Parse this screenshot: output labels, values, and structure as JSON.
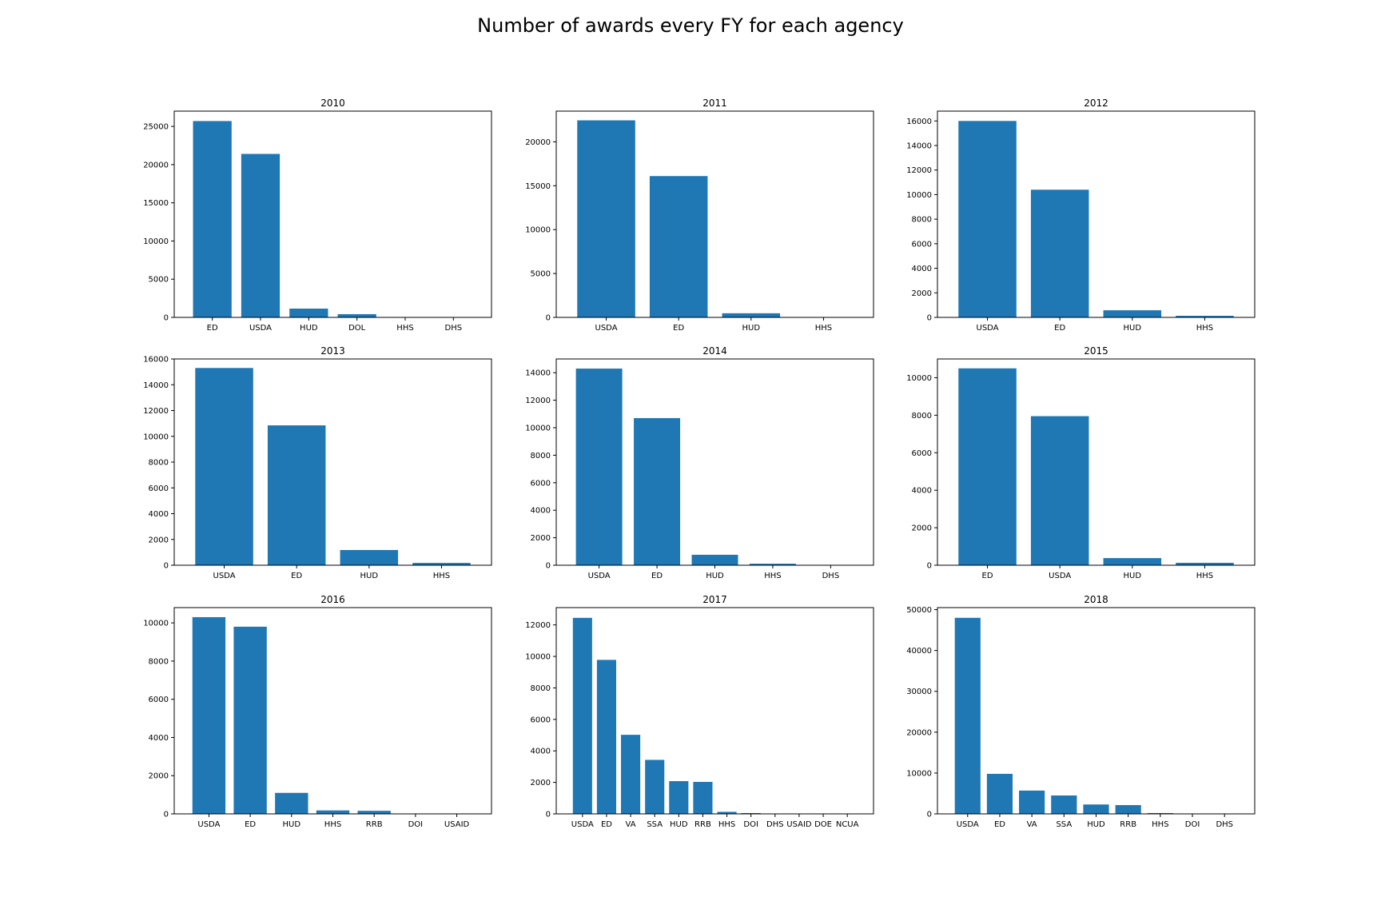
{
  "page": {
    "title": "Number of awards every FY for each agency"
  },
  "bar_color": "#1f77b4",
  "chart_data": [
    {
      "type": "bar",
      "title": "2010",
      "categories": [
        "ED",
        "USDA",
        "HUD",
        "DOL",
        "HHS",
        "DHS"
      ],
      "values": [
        25700,
        21400,
        1150,
        420,
        30,
        10
      ],
      "ylim": [
        0,
        27000
      ],
      "yticks": [
        0,
        5000,
        10000,
        15000,
        20000,
        25000
      ],
      "bar_width": 0.8
    },
    {
      "type": "bar",
      "title": "2011",
      "categories": [
        "USDA",
        "ED",
        "HUD",
        "HHS"
      ],
      "values": [
        22450,
        16100,
        470,
        20
      ],
      "ylim": [
        0,
        23500
      ],
      "yticks": [
        0,
        5000,
        10000,
        15000,
        20000
      ],
      "bar_width": 0.8
    },
    {
      "type": "bar",
      "title": "2012",
      "categories": [
        "USDA",
        "ED",
        "HUD",
        "HHS"
      ],
      "values": [
        16000,
        10400,
        580,
        130
      ],
      "ylim": [
        0,
        16800
      ],
      "yticks": [
        0,
        2000,
        4000,
        6000,
        8000,
        10000,
        12000,
        14000,
        16000
      ],
      "bar_width": 0.8
    },
    {
      "type": "bar",
      "title": "2013",
      "categories": [
        "USDA",
        "ED",
        "HUD",
        "HHS"
      ],
      "values": [
        15300,
        10850,
        1180,
        180
      ],
      "ylim": [
        0,
        16000
      ],
      "yticks": [
        0,
        2000,
        4000,
        6000,
        8000,
        10000,
        12000,
        14000,
        16000
      ],
      "bar_width": 0.8
    },
    {
      "type": "bar",
      "title": "2014",
      "categories": [
        "USDA",
        "ED",
        "HUD",
        "HHS",
        "DHS"
      ],
      "values": [
        14300,
        10700,
        760,
        110,
        10
      ],
      "ylim": [
        0,
        15000
      ],
      "yticks": [
        0,
        2000,
        4000,
        6000,
        8000,
        10000,
        12000,
        14000
      ],
      "bar_width": 0.8
    },
    {
      "type": "bar",
      "title": "2015",
      "categories": [
        "ED",
        "USDA",
        "HUD",
        "HHS"
      ],
      "values": [
        10500,
        7950,
        380,
        130
      ],
      "ylim": [
        0,
        11000
      ],
      "yticks": [
        0,
        2000,
        4000,
        6000,
        8000,
        10000
      ],
      "bar_width": 0.8
    },
    {
      "type": "bar",
      "title": "2016",
      "categories": [
        "USDA",
        "ED",
        "HUD",
        "HHS",
        "RRB",
        "DOI",
        "USAID"
      ],
      "values": [
        10300,
        9800,
        1100,
        180,
        160,
        8,
        4
      ],
      "ylim": [
        0,
        10800
      ],
      "yticks": [
        0,
        2000,
        4000,
        6000,
        8000,
        10000
      ],
      "bar_width": 0.8
    },
    {
      "type": "bar",
      "title": "2017",
      "categories": [
        "USDA",
        "ED",
        "VA",
        "SSA",
        "HUD",
        "RRB",
        "HHS",
        "DOI",
        "DHS",
        "USAID",
        "DOE",
        "NCUA"
      ],
      "values": [
        12450,
        9780,
        5020,
        3430,
        2080,
        2030,
        130,
        50,
        8,
        5,
        3,
        2
      ],
      "ylim": [
        0,
        13100
      ],
      "yticks": [
        0,
        2000,
        4000,
        6000,
        8000,
        10000,
        12000
      ],
      "bar_width": 0.8
    },
    {
      "type": "bar",
      "title": "2018",
      "categories": [
        "USDA",
        "ED",
        "VA",
        "SSA",
        "HUD",
        "RRB",
        "HHS",
        "DOI",
        "DHS"
      ],
      "values": [
        48000,
        9800,
        5700,
        4500,
        2300,
        2150,
        200,
        80,
        15
      ],
      "ylim": [
        0,
        50500
      ],
      "yticks": [
        0,
        10000,
        20000,
        30000,
        40000,
        50000
      ],
      "bar_width": 0.8
    }
  ]
}
